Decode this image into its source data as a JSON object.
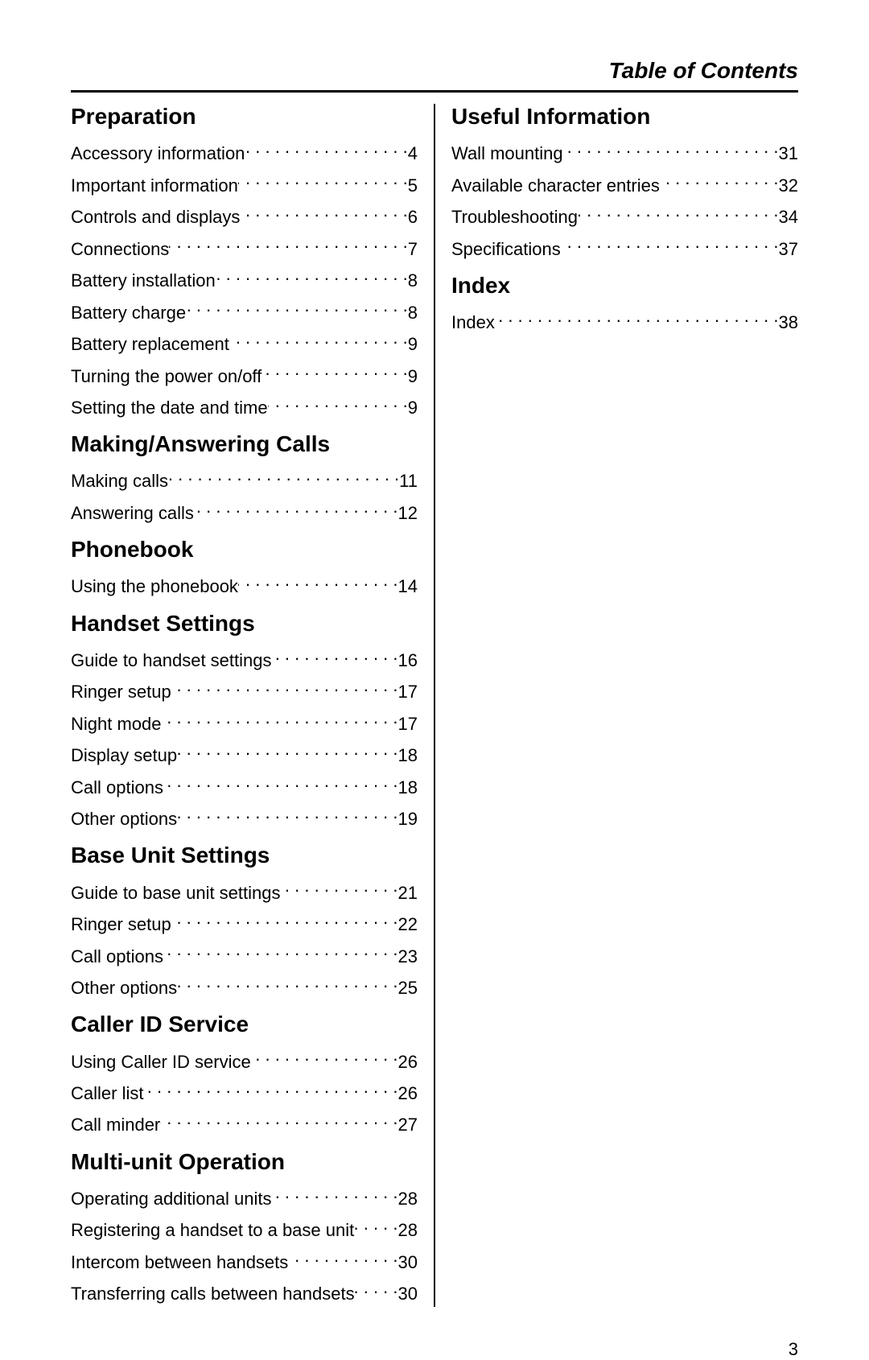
{
  "header": {
    "title": "Table of Contents"
  },
  "page_number": "3",
  "left_column": [
    {
      "heading": "Preparation",
      "entries": [
        {
          "label": "Accessory information",
          "page": "4"
        },
        {
          "label": "Important information",
          "page": "5"
        },
        {
          "label": "Controls and displays",
          "page": "6"
        },
        {
          "label": "Connections",
          "page": "7"
        },
        {
          "label": "Battery installation",
          "page": "8"
        },
        {
          "label": "Battery charge",
          "page": "8"
        },
        {
          "label": "Battery replacement",
          "page": "9"
        },
        {
          "label": "Turning the power on/off",
          "page": "9"
        },
        {
          "label": "Setting the date and time",
          "page": "9"
        }
      ]
    },
    {
      "heading": "Making/Answering Calls",
      "entries": [
        {
          "label": "Making calls",
          "page": "11"
        },
        {
          "label": "Answering calls",
          "page": "12"
        }
      ]
    },
    {
      "heading": "Phonebook",
      "entries": [
        {
          "label": "Using the phonebook",
          "page": "14"
        }
      ]
    },
    {
      "heading": "Handset Settings",
      "entries": [
        {
          "label": "Guide to handset settings",
          "page": "16"
        },
        {
          "label": "Ringer setup",
          "page": "17"
        },
        {
          "label": "Night mode",
          "page": "17"
        },
        {
          "label": "Display setup",
          "page": "18"
        },
        {
          "label": "Call options",
          "page": "18"
        },
        {
          "label": "Other options",
          "page": "19"
        }
      ]
    },
    {
      "heading": "Base Unit Settings",
      "entries": [
        {
          "label": "Guide to base unit settings",
          "page": "21"
        },
        {
          "label": "Ringer setup",
          "page": "22"
        },
        {
          "label": "Call options",
          "page": "23"
        },
        {
          "label": "Other options",
          "page": "25"
        }
      ]
    },
    {
      "heading": "Caller ID Service",
      "entries": [
        {
          "label": "Using Caller ID service",
          "page": "26"
        },
        {
          "label": "Caller list",
          "page": "26"
        },
        {
          "label": "Call minder",
          "page": "27"
        }
      ]
    },
    {
      "heading": "Multi-unit Operation",
      "entries": [
        {
          "label": "Operating additional units",
          "page": "28"
        },
        {
          "label": "Registering a handset to a base unit",
          "page": "28"
        },
        {
          "label": "Intercom between handsets",
          "page": "30"
        },
        {
          "label": "Transferring calls between handsets",
          "page": "30"
        }
      ]
    }
  ],
  "right_column": [
    {
      "heading": "Useful Information",
      "entries": [
        {
          "label": "Wall mounting",
          "page": "31"
        },
        {
          "label": "Available character entries",
          "page": "32"
        },
        {
          "label": "Troubleshooting",
          "page": "34"
        },
        {
          "label": "Specifications",
          "page": "37"
        }
      ]
    },
    {
      "heading": "Index",
      "entries": [
        {
          "label": "Index",
          "page": " 38"
        }
      ]
    }
  ]
}
